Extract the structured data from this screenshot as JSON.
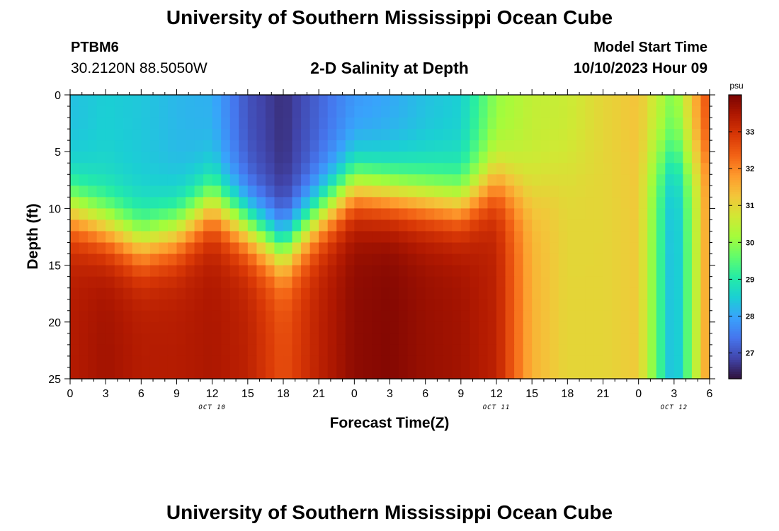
{
  "header": {
    "title": "University of Southern Mississippi Ocean Cube",
    "station_id": "PTBM6",
    "station_coords": "30.2120N  88.5050W",
    "subtitle": "2-D Salinity at Depth",
    "model_start_label": "Model Start Time",
    "model_start_time": "10/10/2023 Hour 09"
  },
  "footer": {
    "title": "University of Southern Mississippi Ocean Cube"
  },
  "chart_data": {
    "type": "heatmap",
    "title": "2-D Salinity at Depth",
    "xlabel": "Forecast Time(Z)",
    "ylabel": "Depth (ft)",
    "x_ticks": [
      "0",
      "3",
      "6",
      "9",
      "12",
      "15",
      "18",
      "21",
      "0",
      "3",
      "6",
      "9",
      "12",
      "15",
      "18",
      "21",
      "0",
      "3",
      "6"
    ],
    "x_range_hours": [
      0,
      54
    ],
    "date_labels": [
      {
        "label": "OCT 10",
        "hour": 12
      },
      {
        "label": "OCT 11",
        "hour": 36
      },
      {
        "label": "OCT 12",
        "hour": 51
      }
    ],
    "y_ticks": [
      "0",
      "5",
      "10",
      "15",
      "20",
      "25"
    ],
    "y_range": [
      0,
      25
    ],
    "colorbar": {
      "units": "psu",
      "ticks": [
        "27",
        "28",
        "29",
        "30",
        "31",
        "32",
        "33"
      ],
      "range": [
        26.3,
        34.0
      ],
      "colors": [
        "#30123b",
        "#4145ab",
        "#4675ed",
        "#39a2fc",
        "#1bcfd4",
        "#24eca6",
        "#61fc6c",
        "#a4fc3b",
        "#d1e834",
        "#f3c63a",
        "#fe9b2d",
        "#f36315",
        "#d93806",
        "#b11901",
        "#7a0402"
      ]
    },
    "salinity_profile": {
      "hours": [
        0,
        3,
        6,
        9,
        12,
        15,
        18,
        21,
        24,
        27,
        30,
        33,
        36,
        39,
        42,
        45,
        48,
        51,
        54
      ],
      "surface_psu": [
        28.3,
        28.5,
        28.4,
        28.2,
        28.1,
        27.0,
        26.6,
        27.2,
        27.8,
        28.0,
        28.3,
        28.5,
        30.0,
        30.5,
        30.6,
        31.0,
        31.3,
        29.8,
        32.8
      ],
      "bottom_psu": [
        33.4,
        33.6,
        33.4,
        33.4,
        33.5,
        33.3,
        32.6,
        33.3,
        33.8,
        33.9,
        33.7,
        33.6,
        33.3,
        31.5,
        31.0,
        31.0,
        31.2,
        28.0,
        32.0
      ],
      "halocline_depth_ft": [
        7.5,
        9.0,
        10.5,
        9.5,
        7.0,
        9.0,
        11.0,
        8.0,
        5.5,
        6.0,
        6.5,
        7.0,
        5.0,
        6.0,
        4.0,
        3.5,
        3.0,
        3.0,
        3.0
      ]
    }
  }
}
